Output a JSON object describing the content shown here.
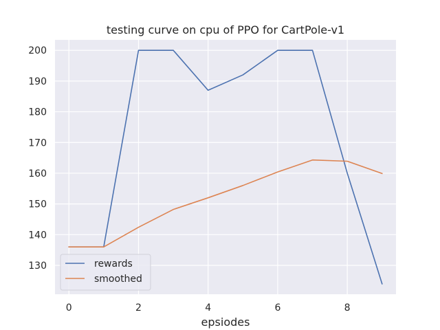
{
  "chart_data": {
    "type": "line",
    "title": "testing curve on cpu of PPO for CartPole-v1",
    "xlabel": "epsiodes",
    "ylabel": "",
    "x": [
      0,
      1,
      2,
      3,
      4,
      5,
      6,
      7,
      8,
      9
    ],
    "xlim": [
      -0.4,
      9.4
    ],
    "ylim": [
      120.6,
      203.4
    ],
    "xticks": [
      0,
      2,
      4,
      6,
      8
    ],
    "yticks": [
      130,
      140,
      150,
      160,
      170,
      180,
      190,
      200
    ],
    "grid": true,
    "legend_position": "lower-left",
    "series": [
      {
        "name": "rewards",
        "color": "#4c72b0",
        "values": [
          136,
          136,
          200,
          200,
          187,
          192,
          200,
          200,
          160,
          124
        ]
      },
      {
        "name": "smoothed",
        "color": "#dd8452",
        "values": [
          136,
          136,
          142.4,
          148.2,
          152.0,
          156.0,
          160.4,
          164.3,
          163.9,
          159.9
        ]
      }
    ]
  },
  "colors": {
    "plot_background": "#eaeaf2",
    "grid": "#ffffff"
  }
}
